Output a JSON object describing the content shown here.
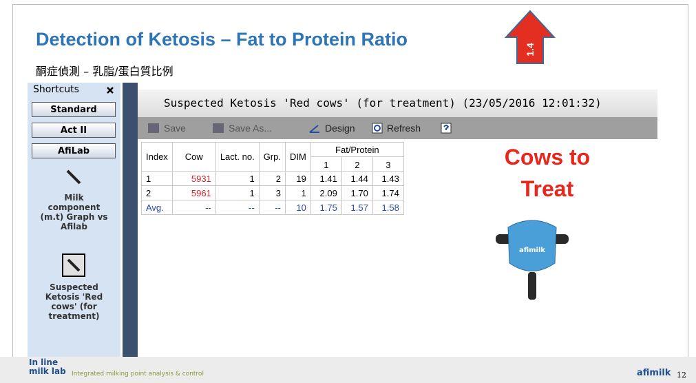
{
  "title": "Detection of Ketosis – Fat to Protein Ratio",
  "arrow_label": "1.4",
  "subtitle": "酮症偵測 – 乳脂/蛋白質比例",
  "sidebar": {
    "header": "Shortcuts",
    "buttons": [
      "Standard",
      "Act II",
      "AfiLab"
    ],
    "items": [
      "Milk component (m.t) Graph vs Afilab",
      "Suspected Ketosis 'Red cows' (for treatment)"
    ]
  },
  "window": {
    "title": "Suspected Ketosis 'Red cows' (for treatment) (23/05/2016 12:01:32)",
    "toolbar": [
      "Save",
      "Save As...",
      "Design",
      "Refresh"
    ],
    "table": {
      "headers": [
        "Index",
        "Cow",
        "Lact. no.",
        "Grp.",
        "DIM"
      ],
      "group_header": "Fat/Protein",
      "sub_headers": [
        "1",
        "2",
        "3"
      ],
      "rows": [
        [
          "1",
          "5931",
          "1",
          "2",
          "19",
          "1.41",
          "1.44",
          "1.43"
        ],
        [
          "2",
          "5961",
          "1",
          "3",
          "1",
          "2.09",
          "1.70",
          "1.74"
        ],
        [
          "Avg.",
          "--",
          "--",
          "--",
          "10",
          "1.75",
          "1.57",
          "1.58"
        ]
      ]
    }
  },
  "callout": [
    "Cows to",
    "Treat"
  ],
  "device_label": "afimilk",
  "footer": {
    "logo": [
      "In line",
      "milk lab"
    ],
    "tagline": "Integrated milking point analysis & control",
    "brand": "afimilk",
    "page": "12"
  }
}
